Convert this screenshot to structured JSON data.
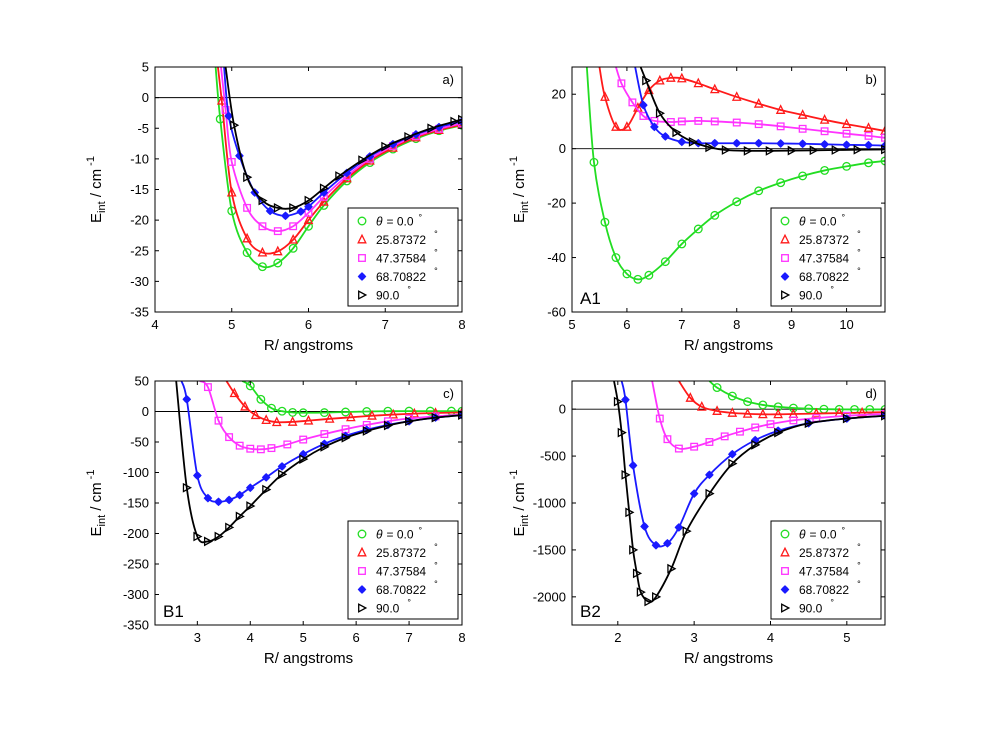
{
  "figure": {
    "xlabel": "R/ angstroms",
    "ylabel_main": "E",
    "ylabel_sub": "int",
    "ylabel_rest": " / cm",
    "ylabel_exp": "-1"
  },
  "legend": {
    "theta_symbol": "θ",
    "degree": "°",
    "entries": [
      "= 0.0",
      "25.87372",
      "47.37584",
      "68.70822",
      "90.0"
    ]
  },
  "styles": {
    "series_colors": [
      "#22dd22",
      "#ff1a1a",
      "#ff33ff",
      "#1a1aff",
      "#000000"
    ],
    "markers": [
      "circle",
      "triangle-up",
      "square",
      "star",
      "triangle-right"
    ]
  },
  "chart_data": [
    {
      "id": "a",
      "type": "line",
      "panel_label": "a)",
      "corner_label": "",
      "xlim": [
        4,
        8
      ],
      "ylim": [
        -35,
        5
      ],
      "xticks": [
        4,
        5,
        6,
        7,
        8
      ],
      "yticks": [
        5,
        0,
        -5,
        -10,
        -15,
        -20,
        -25,
        -30,
        -35
      ],
      "xlabel": "R/ angstroms",
      "series": [
        {
          "name": "θ = 0.0°",
          "x": [
            4.79,
            4.85,
            5.0,
            5.2,
            5.4,
            5.6,
            5.8,
            6.0,
            6.2,
            6.5,
            6.8,
            7.1,
            7.4,
            7.7,
            8.0
          ],
          "y": [
            5,
            -3.5,
            -18.5,
            -25.3,
            -27.6,
            -27.0,
            -24.6,
            -21.0,
            -17.6,
            -13.6,
            -10.6,
            -8.4,
            -6.7,
            -5.4,
            -4.5
          ]
        },
        {
          "name": "25.87372°",
          "x": [
            4.82,
            4.87,
            5.0,
            5.2,
            5.4,
            5.6,
            5.8,
            6.0,
            6.2,
            6.5,
            6.8,
            7.1,
            7.4,
            7.7,
            8.0
          ],
          "y": [
            5,
            -0.5,
            -15.5,
            -23.0,
            -25.3,
            -25.1,
            -23.2,
            -20.0,
            -17.0,
            -13.2,
            -10.3,
            -8.2,
            -6.5,
            -5.3,
            -4.4
          ]
        },
        {
          "name": "47.37584°",
          "x": [
            4.86,
            4.92,
            5.0,
            5.2,
            5.4,
            5.6,
            5.8,
            6.0,
            6.2,
            6.5,
            6.8,
            7.1,
            7.4,
            7.7,
            8.0
          ],
          "y": [
            5,
            -2.0,
            -10.5,
            -18.0,
            -21.0,
            -21.8,
            -21.0,
            -18.8,
            -16.2,
            -12.8,
            -10.0,
            -7.9,
            -6.3,
            -5.1,
            -4.2
          ]
        },
        {
          "name": "68.70822°",
          "x": [
            4.9,
            4.96,
            5.1,
            5.3,
            5.5,
            5.7,
            5.9,
            6.0,
            6.2,
            6.5,
            6.8,
            7.1,
            7.4,
            7.7,
            8.0
          ],
          "y": [
            5,
            -3.0,
            -9.5,
            -15.5,
            -18.5,
            -19.3,
            -18.6,
            -17.8,
            -15.5,
            -12.3,
            -9.6,
            -7.6,
            -6.0,
            -4.8,
            -3.9
          ]
        },
        {
          "name": "90.0°",
          "x": [
            4.92,
            5.03,
            5.2,
            5.4,
            5.6,
            5.8,
            6.0,
            6.2,
            6.4,
            6.7,
            7.0,
            7.3,
            7.6,
            7.9,
            8.0
          ],
          "y": [
            5,
            -4.5,
            -13.0,
            -16.8,
            -18.0,
            -18.0,
            -16.8,
            -14.8,
            -12.8,
            -10.2,
            -8.0,
            -6.4,
            -5.0,
            -3.9,
            -3.6
          ]
        }
      ]
    },
    {
      "id": "b",
      "type": "line",
      "panel_label": "b)",
      "corner_label": "A1",
      "xlim": [
        5,
        10.7
      ],
      "ylim": [
        -60,
        30
      ],
      "xticks": [
        5,
        6,
        7,
        8,
        9,
        10
      ],
      "yticks": [
        20,
        0,
        -20,
        -40,
        -60
      ],
      "xlabel": "R/ angstroms",
      "series": [
        {
          "name": "θ = 0.0°",
          "x": [
            5.27,
            5.4,
            5.6,
            5.8,
            6.0,
            6.2,
            6.4,
            6.7,
            7.0,
            7.3,
            7.6,
            8.0,
            8.4,
            8.8,
            9.2,
            9.6,
            10.0,
            10.4,
            10.7
          ],
          "y": [
            30,
            -5.0,
            -27.0,
            -40.0,
            -46.0,
            -48.0,
            -46.5,
            -41.5,
            -35.0,
            -29.5,
            -24.5,
            -19.5,
            -15.5,
            -12.5,
            -10.0,
            -8.0,
            -6.5,
            -5.2,
            -4.5
          ]
        },
        {
          "name": "25.87372°",
          "x": [
            5.5,
            5.6,
            5.8,
            6.0,
            6.2,
            6.4,
            6.6,
            6.8,
            7.0,
            7.3,
            7.6,
            8.0,
            8.4,
            8.8,
            9.2,
            9.6,
            10.0,
            10.4,
            10.7
          ],
          "y": [
            30,
            19.0,
            8.0,
            8.0,
            15.0,
            21.5,
            25.0,
            26.0,
            25.8,
            24.0,
            21.8,
            19.0,
            16.5,
            14.2,
            12.4,
            10.6,
            9.0,
            7.6,
            6.5
          ]
        },
        {
          "name": "47.37584°",
          "x": [
            5.8,
            5.9,
            6.1,
            6.3,
            6.5,
            6.8,
            7.0,
            7.3,
            7.6,
            8.0,
            8.4,
            8.8,
            9.2,
            9.6,
            10.0,
            10.4,
            10.7
          ],
          "y": [
            30,
            24.0,
            17.0,
            12.0,
            10.2,
            9.8,
            10.0,
            10.2,
            10.0,
            9.6,
            9.0,
            8.2,
            7.3,
            6.4,
            5.5,
            4.7,
            4.0
          ]
        },
        {
          "name": "68.70822°",
          "x": [
            6.15,
            6.3,
            6.5,
            6.7,
            7.0,
            7.3,
            7.6,
            8.0,
            8.4,
            8.8,
            9.2,
            9.6,
            10.0,
            10.4,
            10.7
          ],
          "y": [
            30,
            16.0,
            8.0,
            4.5,
            2.5,
            2.0,
            2.0,
            2.0,
            2.0,
            1.9,
            1.8,
            1.6,
            1.4,
            1.3,
            1.1
          ]
        },
        {
          "name": "90.0°",
          "x": [
            6.25,
            6.35,
            6.6,
            6.9,
            7.2,
            7.5,
            7.8,
            8.2,
            8.6,
            9.0,
            9.4,
            9.8,
            10.2,
            10.7
          ],
          "y": [
            30,
            25.0,
            13.0,
            6.0,
            2.5,
            0.5,
            -0.5,
            -0.8,
            -0.8,
            -0.7,
            -0.6,
            -0.5,
            -0.4,
            -0.3
          ]
        }
      ]
    },
    {
      "id": "c",
      "type": "line",
      "panel_label": "c)",
      "corner_label": "B1",
      "xlim": [
        2.2,
        8
      ],
      "ylim": [
        -350,
        50
      ],
      "xticks": [
        3,
        4,
        5,
        6,
        7,
        8
      ],
      "yticks": [
        50,
        0,
        -50,
        -100,
        -150,
        -200,
        -250,
        -300,
        -350
      ],
      "xlabel": "R/ angstroms",
      "series": [
        {
          "name": "θ = 0.0°",
          "x": [
            3.85,
            4.0,
            4.2,
            4.4,
            4.6,
            4.8,
            5.0,
            5.4,
            5.8,
            6.2,
            6.6,
            7.0,
            7.4,
            7.8,
            8.0
          ],
          "y": [
            50,
            42.0,
            20.0,
            5.5,
            0.5,
            -1.5,
            -2.0,
            -1.8,
            -0.8,
            0.0,
            0.5,
            0.6,
            0.6,
            0.6,
            0.5
          ]
        },
        {
          "name": "25.87372°",
          "x": [
            3.55,
            3.7,
            3.9,
            4.1,
            4.3,
            4.5,
            4.8,
            5.1,
            5.5,
            5.9,
            6.3,
            6.7,
            7.1,
            7.5,
            8.0
          ],
          "y": [
            50,
            30.0,
            8.0,
            -6.0,
            -14.0,
            -17.5,
            -17.0,
            -15.0,
            -12.0,
            -9.5,
            -7.0,
            -5.0,
            -3.5,
            -2.5,
            -1.5
          ]
        },
        {
          "name": "47.37584°",
          "x": [
            3.05,
            3.2,
            3.4,
            3.6,
            3.8,
            4.0,
            4.2,
            4.4,
            4.7,
            5.0,
            5.4,
            5.8,
            6.2,
            6.6,
            7.0,
            7.5,
            8.0
          ],
          "y": [
            50,
            40.0,
            -15.0,
            -42.0,
            -56.0,
            -61.0,
            -62.0,
            -60.0,
            -54.0,
            -46.0,
            -37.0,
            -29.0,
            -22.0,
            -16.0,
            -11.5,
            -8.0,
            -5.0
          ]
        },
        {
          "name": "68.70822°",
          "x": [
            2.7,
            2.8,
            3.0,
            3.2,
            3.4,
            3.6,
            3.8,
            4.0,
            4.3,
            4.6,
            5.0,
            5.4,
            5.8,
            6.2,
            6.6,
            7.0,
            7.5,
            8.0
          ],
          "y": [
            50,
            20.0,
            -105.0,
            -142.0,
            -148.0,
            -145.0,
            -137.0,
            -125.0,
            -108.0,
            -90.0,
            -70.0,
            -53.0,
            -40.0,
            -30.0,
            -22.0,
            -16.0,
            -10.0,
            -6.0
          ]
        },
        {
          "name": "90.0°",
          "x": [
            2.6,
            2.8,
            3.0,
            3.2,
            3.4,
            3.6,
            3.8,
            4.0,
            4.3,
            4.6,
            5.0,
            5.4,
            5.8,
            6.2,
            6.6,
            7.0,
            7.5,
            8.0
          ],
          "y": [
            50,
            -125.0,
            -205.0,
            -213.0,
            -205.0,
            -190.0,
            -172.0,
            -155.0,
            -128.0,
            -103.0,
            -78.0,
            -58.0,
            -43.0,
            -32.0,
            -23.0,
            -16.0,
            -10.0,
            -6.0
          ]
        }
      ]
    },
    {
      "id": "d",
      "type": "line",
      "panel_label": "d)",
      "corner_label": "B2",
      "xlim": [
        1.4,
        5.5
      ],
      "ylim": [
        -2300,
        300
      ],
      "xticks": [
        2,
        3,
        4,
        5
      ],
      "yticks": [
        0,
        -500,
        -1000,
        -1500,
        -2000
      ],
      "xlabel": "R/ angstroms",
      "series": [
        {
          "name": "θ = 0.0°",
          "x": [
            3.2,
            3.3,
            3.5,
            3.7,
            3.9,
            4.1,
            4.3,
            4.5,
            4.7,
            4.9,
            5.1,
            5.3,
            5.5
          ],
          "y": [
            300,
            230,
            140,
            80,
            45,
            25,
            12,
            5,
            0,
            -2,
            -3,
            -3,
            -3
          ]
        },
        {
          "name": "25.87372°",
          "x": [
            2.8,
            2.95,
            3.1,
            3.3,
            3.5,
            3.7,
            3.9,
            4.1,
            4.3,
            4.6,
            4.9,
            5.2,
            5.5
          ],
          "y": [
            300,
            120,
            25,
            -20,
            -40,
            -50,
            -55,
            -55,
            -52,
            -47,
            -42,
            -37,
            -32
          ]
        },
        {
          "name": "47.37584°",
          "x": [
            2.45,
            2.55,
            2.65,
            2.8,
            3.0,
            3.2,
            3.4,
            3.6,
            3.8,
            4.0,
            4.3,
            4.6,
            5.0,
            5.5
          ],
          "y": [
            300,
            -100,
            -320,
            -420,
            -400,
            -350,
            -290,
            -240,
            -195,
            -160,
            -120,
            -95,
            -70,
            -50
          ]
        },
        {
          "name": "68.70822°",
          "x": [
            2.05,
            2.1,
            2.2,
            2.35,
            2.5,
            2.65,
            2.8,
            3.0,
            3.2,
            3.5,
            3.8,
            4.1,
            4.5,
            5.0,
            5.5
          ],
          "y": [
            300,
            100,
            -600,
            -1250,
            -1450,
            -1430,
            -1260,
            -900,
            -700,
            -480,
            -330,
            -230,
            -150,
            -100,
            -70
          ]
        },
        {
          "name": "90.0°",
          "x": [
            1.95,
            2.0,
            2.05,
            2.1,
            2.15,
            2.2,
            2.25,
            2.3,
            2.4,
            2.5,
            2.7,
            2.9,
            3.2,
            3.5,
            3.8,
            4.1,
            4.5,
            5.0,
            5.5
          ],
          "y": [
            300,
            80,
            -250,
            -700,
            -1100,
            -1500,
            -1750,
            -1950,
            -2050,
            -2000,
            -1700,
            -1300,
            -900,
            -580,
            -380,
            -250,
            -150,
            -100,
            -70
          ]
        }
      ]
    }
  ]
}
